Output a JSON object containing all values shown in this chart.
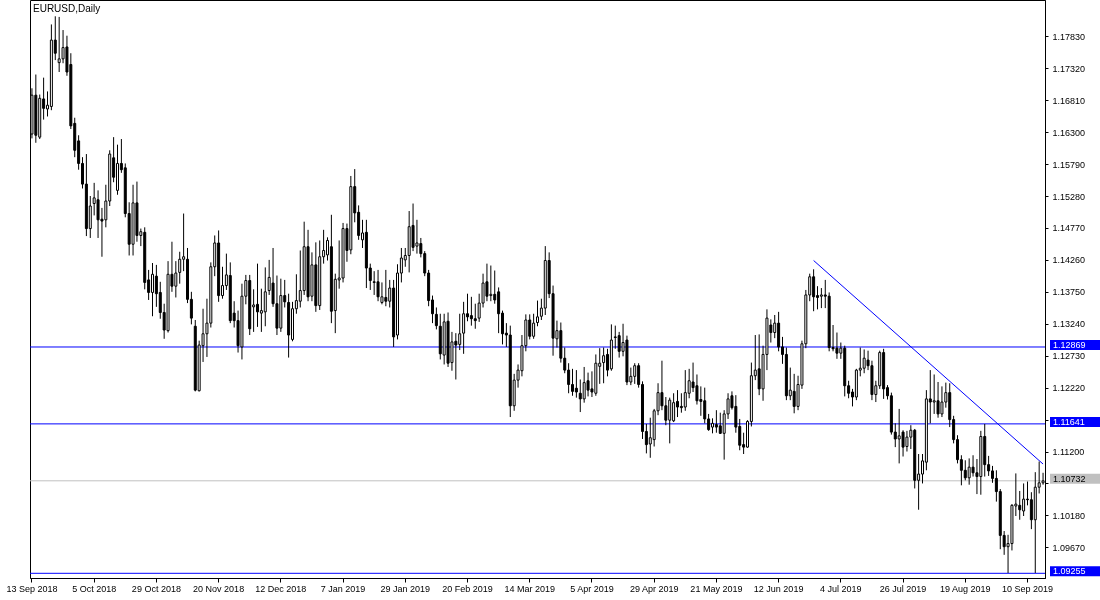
{
  "chart_data": {
    "type": "candlestick",
    "title": "EURUSD,Daily",
    "categories": [
      "13 Sep 2018",
      null,
      null,
      null,
      null,
      null,
      null,
      null,
      null,
      null,
      null,
      null,
      null,
      null,
      null,
      null,
      "5 Oct 2018",
      null,
      null,
      null,
      null,
      null,
      null,
      null,
      null,
      null,
      null,
      null,
      null,
      null,
      null,
      null,
      "29 Oct 2018",
      null,
      null,
      null,
      null,
      null,
      null,
      null,
      null,
      null,
      null,
      null,
      null,
      null,
      null,
      null,
      "20 Nov 2018",
      null,
      null,
      null,
      null,
      null,
      null,
      null,
      null,
      null,
      null,
      null,
      null,
      null,
      null,
      null,
      "12 Dec 2018",
      null,
      null,
      null,
      null,
      null,
      null,
      null,
      null,
      null,
      null,
      null,
      null,
      null,
      null,
      null,
      "7 Jan 2019",
      null,
      null,
      null,
      null,
      null,
      null,
      null,
      null,
      null,
      null,
      null,
      null,
      null,
      null,
      null,
      "29 Jan 2019",
      null,
      null,
      null,
      null,
      null,
      null,
      null,
      null,
      null,
      null,
      null,
      null,
      null,
      null,
      null,
      "20 Feb 2019",
      null,
      null,
      null,
      null,
      null,
      null,
      null,
      null,
      null,
      null,
      null,
      null,
      null,
      null,
      null,
      "14 Mar 2019",
      null,
      null,
      null,
      null,
      null,
      null,
      null,
      null,
      null,
      null,
      null,
      null,
      null,
      null,
      null,
      "5 Apr 2019",
      null,
      null,
      null,
      null,
      null,
      null,
      null,
      null,
      null,
      null,
      null,
      null,
      null,
      null,
      null,
      "29 Apr 2019",
      null,
      null,
      null,
      null,
      null,
      null,
      null,
      null,
      null,
      null,
      null,
      null,
      null,
      null,
      null,
      "21 May 2019",
      null,
      null,
      null,
      null,
      null,
      null,
      null,
      null,
      null,
      null,
      null,
      null,
      null,
      null,
      null,
      "12 Jun 2019",
      null,
      null,
      null,
      null,
      null,
      null,
      null,
      null,
      null,
      null,
      null,
      null,
      null,
      null,
      null,
      "4 Jul 2019",
      null,
      null,
      null,
      null,
      null,
      null,
      null,
      null,
      null,
      null,
      null,
      null,
      null,
      null,
      null,
      "26 Jul 2019",
      null,
      null,
      null,
      null,
      null,
      null,
      null,
      null,
      null,
      null,
      null,
      null,
      null,
      null,
      null,
      "19 Aug 2019",
      null,
      null,
      null,
      null,
      null,
      null,
      null,
      null,
      null,
      null,
      null,
      null,
      null,
      null,
      null,
      "10 Sep 2019",
      null,
      null,
      null,
      null
    ],
    "ohlc": [
      [
        1.1627,
        1.17,
        1.162,
        1.1689
      ],
      [
        1.1689,
        1.1722,
        1.1613,
        1.1625
      ],
      [
        1.1622,
        1.169,
        1.1619,
        1.1684
      ],
      [
        1.1683,
        1.1717,
        1.165,
        1.1668
      ],
      [
        1.1667,
        1.1695,
        1.1655,
        1.1673
      ],
      [
        1.1671,
        1.1802,
        1.1665,
        1.1777
      ],
      [
        1.1777,
        1.1815,
        1.1745,
        1.1756
      ],
      [
        1.1741,
        1.1814,
        1.1726,
        1.1747
      ],
      [
        1.1747,
        1.1793,
        1.174,
        1.1765
      ],
      [
        1.1766,
        1.1784,
        1.172,
        1.1726
      ],
      [
        1.1738,
        1.1756,
        1.1635,
        1.164
      ],
      [
        1.1644,
        1.1653,
        1.159,
        1.1601
      ],
      [
        1.1616,
        1.1625,
        1.157,
        1.158
      ],
      [
        1.158,
        1.159,
        1.154,
        1.1547
      ],
      [
        1.1547,
        1.1595,
        1.1464,
        1.1476
      ],
      [
        1.1476,
        1.1528,
        1.1461,
        1.1512
      ],
      [
        1.1516,
        1.1549,
        1.1497,
        1.1525
      ],
      [
        1.1522,
        1.1537,
        1.1461,
        1.149
      ],
      [
        1.1491,
        1.1509,
        1.1431,
        1.1488
      ],
      [
        1.149,
        1.1546,
        1.1478,
        1.152
      ],
      [
        1.152,
        1.1601,
        1.1512,
        1.1595
      ],
      [
        1.1589,
        1.1622,
        1.155,
        1.1558
      ],
      [
        1.1537,
        1.161,
        1.153,
        1.158
      ],
      [
        1.158,
        1.1619,
        1.1565,
        1.157
      ],
      [
        1.1573,
        1.158,
        1.1494,
        1.15
      ],
      [
        1.15,
        1.1518,
        1.1433,
        1.1451
      ],
      [
        1.1451,
        1.1546,
        1.1433,
        1.1517
      ],
      [
        1.1517,
        1.1551,
        1.1455,
        1.1465
      ],
      [
        1.1465,
        1.1476,
        1.1448,
        1.1471
      ],
      [
        1.147,
        1.1478,
        1.1379,
        1.139
      ],
      [
        1.1394,
        1.141,
        1.1362,
        1.1374
      ],
      [
        1.1374,
        1.1421,
        1.1336,
        1.1403
      ],
      [
        1.14,
        1.1418,
        1.1351,
        1.1372
      ],
      [
        1.1374,
        1.1391,
        1.1332,
        1.1342
      ],
      [
        1.1342,
        1.1356,
        1.13,
        1.1314
      ],
      [
        1.1313,
        1.1424,
        1.131,
        1.1403
      ],
      [
        1.1403,
        1.1455,
        1.1375,
        1.1384
      ],
      [
        1.1384,
        1.1424,
        1.1366,
        1.1405
      ],
      [
        1.1406,
        1.1439,
        1.1388,
        1.1427
      ],
      [
        1.1427,
        1.15,
        1.1408,
        1.1431
      ],
      [
        1.1427,
        1.1445,
        1.1357,
        1.1363
      ],
      [
        1.1363,
        1.1375,
        1.1323,
        1.1333
      ],
      [
        1.132,
        1.133,
        1.1216,
        1.1218
      ],
      [
        1.1217,
        1.1297,
        1.1216,
        1.129
      ],
      [
        1.1289,
        1.1348,
        1.1263,
        1.1308
      ],
      [
        1.1308,
        1.1364,
        1.1271,
        1.1325
      ],
      [
        1.1325,
        1.1422,
        1.1318,
        1.1415
      ],
      [
        1.1415,
        1.1465,
        1.14,
        1.1453
      ],
      [
        1.1453,
        1.1473,
        1.1359,
        1.1369
      ],
      [
        1.1369,
        1.1415,
        1.1364,
        1.1385
      ],
      [
        1.1385,
        1.1436,
        1.1378,
        1.1402
      ],
      [
        1.1401,
        1.1422,
        1.1325,
        1.1329
      ],
      [
        1.1341,
        1.136,
        1.1318,
        1.1329
      ],
      [
        1.1329,
        1.1345,
        1.1278,
        1.1289
      ],
      [
        1.1287,
        1.1388,
        1.1267,
        1.1368
      ],
      [
        1.1368,
        1.1402,
        1.1355,
        1.1393
      ],
      [
        1.1393,
        1.1402,
        1.1306,
        1.1316
      ],
      [
        1.1351,
        1.1379,
        1.1311,
        1.1354
      ],
      [
        1.1355,
        1.142,
        1.1319,
        1.1343
      ],
      [
        1.1341,
        1.138,
        1.1311,
        1.1345
      ],
      [
        1.1343,
        1.1414,
        1.132,
        1.1375
      ],
      [
        1.1377,
        1.1426,
        1.137,
        1.1398
      ],
      [
        1.1389,
        1.1445,
        1.1351,
        1.1356
      ],
      [
        1.1356,
        1.1401,
        1.1306,
        1.1317
      ],
      [
        1.1317,
        1.1396,
        1.1311,
        1.1369
      ],
      [
        1.1369,
        1.1394,
        1.135,
        1.1359
      ],
      [
        1.1358,
        1.1372,
        1.127,
        1.1306
      ],
      [
        1.1299,
        1.1359,
        1.1296,
        1.1348
      ],
      [
        1.1348,
        1.1403,
        1.134,
        1.1361
      ],
      [
        1.136,
        1.1441,
        1.135,
        1.1377
      ],
      [
        1.1377,
        1.1487,
        1.137,
        1.1447
      ],
      [
        1.1447,
        1.1474,
        1.136,
        1.1367
      ],
      [
        1.1368,
        1.1438,
        1.136,
        1.1418
      ],
      [
        1.1418,
        1.1454,
        1.1343,
        1.1353
      ],
      [
        1.1353,
        1.1457,
        1.1346,
        1.1431
      ],
      [
        1.1431,
        1.1474,
        1.142,
        1.1441
      ],
      [
        1.1434,
        1.1462,
        1.1425,
        1.1457
      ],
      [
        1.1447,
        1.1498,
        1.1325,
        1.1344
      ],
      [
        1.1345,
        1.1404,
        1.1309,
        1.1395
      ],
      [
        1.1394,
        1.1457,
        1.138,
        1.1397
      ],
      [
        1.1397,
        1.1485,
        1.139,
        1.1476
      ],
      [
        1.1476,
        1.1484,
        1.1423,
        1.1441
      ],
      [
        1.1442,
        1.156,
        1.1435,
        1.1543
      ],
      [
        1.1543,
        1.1571,
        1.1486,
        1.1501
      ],
      [
        1.1502,
        1.1513,
        1.1458,
        1.1465
      ],
      [
        1.1458,
        1.149,
        1.1445,
        1.1469
      ],
      [
        1.147,
        1.149,
        1.1381,
        1.1413
      ],
      [
        1.1413,
        1.142,
        1.1378,
        1.1393
      ],
      [
        1.1391,
        1.1408,
        1.137,
        1.139
      ],
      [
        1.1391,
        1.141,
        1.136,
        1.1367
      ],
      [
        1.1358,
        1.139,
        1.1355,
        1.1367
      ],
      [
        1.1366,
        1.141,
        1.1352,
        1.136
      ],
      [
        1.136,
        1.1394,
        1.135,
        1.1381
      ],
      [
        1.1381,
        1.1394,
        1.1287,
        1.1303
      ],
      [
        1.1306,
        1.1419,
        1.1299,
        1.1405
      ],
      [
        1.1405,
        1.1445,
        1.139,
        1.1429
      ],
      [
        1.1426,
        1.1445,
        1.1415,
        1.1433
      ],
      [
        1.1433,
        1.1504,
        1.1406,
        1.1479
      ],
      [
        1.1481,
        1.1516,
        1.144,
        1.1446
      ],
      [
        1.1448,
        1.149,
        1.1436,
        1.1453
      ],
      [
        1.1452,
        1.1461,
        1.143,
        1.1436
      ],
      [
        1.1436,
        1.144,
        1.14,
        1.1405
      ],
      [
        1.1405,
        1.141,
        1.1352,
        1.1361
      ],
      [
        1.1362,
        1.1369,
        1.1325,
        1.134
      ],
      [
        1.1339,
        1.135,
        1.1315,
        1.1321
      ],
      [
        1.132,
        1.134,
        1.1267,
        1.1276
      ],
      [
        1.1274,
        1.134,
        1.1259,
        1.1327
      ],
      [
        1.1328,
        1.1342,
        1.1255,
        1.1261
      ],
      [
        1.1262,
        1.1311,
        1.1249,
        1.1295
      ],
      [
        1.1296,
        1.1309,
        1.1235,
        1.129
      ],
      [
        1.1291,
        1.134,
        1.1282,
        1.1308
      ],
      [
        1.1309,
        1.1359,
        1.1276,
        1.134
      ],
      [
        1.134,
        1.1372,
        1.1328,
        1.1335
      ],
      [
        1.1337,
        1.1367,
        1.1321,
        1.1332
      ],
      [
        1.1332,
        1.1356,
        1.1316,
        1.1329
      ],
      [
        1.1333,
        1.1372,
        1.1327,
        1.1357
      ],
      [
        1.1357,
        1.1404,
        1.135,
        1.1389
      ],
      [
        1.1391,
        1.142,
        1.136,
        1.1368
      ],
      [
        1.1369,
        1.1417,
        1.136,
        1.1371
      ],
      [
        1.1371,
        1.1409,
        1.1356,
        1.1362
      ],
      [
        1.1375,
        1.1382,
        1.1309,
        1.134
      ],
      [
        1.1341,
        1.1345,
        1.1291,
        1.1308
      ],
      [
        1.1309,
        1.1325,
        1.1287,
        1.1306
      ],
      [
        1.1306,
        1.1321,
        1.1175,
        1.1193
      ],
      [
        1.1193,
        1.1244,
        1.1185,
        1.1234
      ],
      [
        1.1234,
        1.1259,
        1.1222,
        1.125
      ],
      [
        1.1249,
        1.1306,
        1.124,
        1.1289
      ],
      [
        1.1289,
        1.1339,
        1.128,
        1.133
      ],
      [
        1.133,
        1.1339,
        1.1299,
        1.1304
      ],
      [
        1.1304,
        1.134,
        1.13,
        1.1325
      ],
      [
        1.1326,
        1.1361,
        1.132,
        1.1335
      ],
      [
        1.1336,
        1.1364,
        1.133,
        1.1349
      ],
      [
        1.1349,
        1.1448,
        1.1338,
        1.1425
      ],
      [
        1.1425,
        1.1438,
        1.1365,
        1.1372
      ],
      [
        1.1372,
        1.1385,
        1.1273,
        1.1301
      ],
      [
        1.13,
        1.1329,
        1.1286,
        1.1313
      ],
      [
        1.1313,
        1.1326,
        1.1262,
        1.1269
      ],
      [
        1.1269,
        1.1286,
        1.1245,
        1.125
      ],
      [
        1.125,
        1.1261,
        1.1213,
        1.1227
      ],
      [
        1.1227,
        1.1252,
        1.1209,
        1.1216
      ],
      [
        1.1221,
        1.125,
        1.1206,
        1.1215
      ],
      [
        1.1213,
        1.1235,
        1.1183,
        1.1204
      ],
      [
        1.1204,
        1.1255,
        1.1198,
        1.123
      ],
      [
        1.1233,
        1.1246,
        1.1208,
        1.1218
      ],
      [
        1.122,
        1.1248,
        1.1207,
        1.1215
      ],
      [
        1.1213,
        1.1275,
        1.1209,
        1.1261
      ],
      [
        1.1256,
        1.1285,
        1.1228,
        1.1261
      ],
      [
        1.1262,
        1.1286,
        1.1229,
        1.1273
      ],
      [
        1.1275,
        1.1284,
        1.124,
        1.125
      ],
      [
        1.1252,
        1.1323,
        1.1249,
        1.1298
      ],
      [
        1.1303,
        1.1321,
        1.1284,
        1.1302
      ],
      [
        1.1305,
        1.1311,
        1.127,
        1.128
      ],
      [
        1.128,
        1.1324,
        1.1272,
        1.1294
      ],
      [
        1.1298,
        1.1305,
        1.1226,
        1.1231
      ],
      [
        1.1231,
        1.1254,
        1.1226,
        1.124
      ],
      [
        1.124,
        1.1261,
        1.1228,
        1.1257
      ],
      [
        1.1257,
        1.1261,
        1.1222,
        1.1227
      ],
      [
        1.1227,
        1.1232,
        1.114,
        1.1152
      ],
      [
        1.1152,
        1.1164,
        1.1117,
        1.1131
      ],
      [
        1.1132,
        1.1174,
        1.111,
        1.1142
      ],
      [
        1.1139,
        1.1188,
        1.1128,
        1.1185
      ],
      [
        1.1185,
        1.1229,
        1.1178,
        1.1214
      ],
      [
        1.1214,
        1.1265,
        1.1186,
        1.1193
      ],
      [
        1.1193,
        1.1207,
        1.1162,
        1.117
      ],
      [
        1.117,
        1.1206,
        1.1133,
        1.1202
      ],
      [
        1.1169,
        1.1213,
        1.1167,
        1.1198
      ],
      [
        1.12,
        1.1218,
        1.1175,
        1.1191
      ],
      [
        1.1192,
        1.1213,
        1.1182,
        1.119
      ],
      [
        1.1191,
        1.125,
        1.1185,
        1.1214
      ],
      [
        1.1213,
        1.1252,
        1.1205,
        1.1233
      ],
      [
        1.1231,
        1.1262,
        1.1215,
        1.1222
      ],
      [
        1.1225,
        1.1243,
        1.1195,
        1.1201
      ],
      [
        1.1203,
        1.1224,
        1.1177,
        1.12
      ],
      [
        1.1201,
        1.1222,
        1.1165,
        1.1172
      ],
      [
        1.1172,
        1.118,
        1.1153,
        1.1155
      ],
      [
        1.1159,
        1.1173,
        1.1149,
        1.1165
      ],
      [
        1.1163,
        1.1186,
        1.115,
        1.1159
      ],
      [
        1.1161,
        1.1182,
        1.1148,
        1.1149
      ],
      [
        1.1149,
        1.1186,
        1.1107,
        1.118
      ],
      [
        1.118,
        1.1213,
        1.1172,
        1.1204
      ],
      [
        1.1209,
        1.1216,
        1.1187,
        1.119
      ],
      [
        1.1192,
        1.121,
        1.115,
        1.1159
      ],
      [
        1.116,
        1.1172,
        1.1122,
        1.113
      ],
      [
        1.1131,
        1.115,
        1.1116,
        1.1127
      ],
      [
        1.1127,
        1.117,
        1.1126,
        1.1168
      ],
      [
        1.1168,
        1.1262,
        1.116,
        1.1241
      ],
      [
        1.1241,
        1.1306,
        1.1234,
        1.125
      ],
      [
        1.1252,
        1.1307,
        1.121,
        1.122
      ],
      [
        1.122,
        1.1289,
        1.1201,
        1.1275
      ],
      [
        1.1275,
        1.1347,
        1.125,
        1.1333
      ],
      [
        1.1322,
        1.1331,
        1.1294,
        1.131
      ],
      [
        1.131,
        1.1338,
        1.1301,
        1.1325
      ],
      [
        1.1325,
        1.1343,
        1.128,
        1.1287
      ],
      [
        1.1287,
        1.1303,
        1.126,
        1.1275
      ],
      [
        1.1275,
        1.1286,
        1.1202,
        1.1209
      ],
      [
        1.1209,
        1.1254,
        1.1202,
        1.1218
      ],
      [
        1.1216,
        1.1244,
        1.1181,
        1.1192
      ],
      [
        1.1192,
        1.1241,
        1.1186,
        1.1227
      ],
      [
        1.1226,
        1.1297,
        1.122,
        1.1292
      ],
      [
        1.1292,
        1.1378,
        1.1285,
        1.137
      ],
      [
        1.137,
        1.1404,
        1.136,
        1.1399
      ],
      [
        1.1399,
        1.1411,
        1.1344,
        1.1367
      ],
      [
        1.1369,
        1.1384,
        1.1347,
        1.1366
      ],
      [
        1.1368,
        1.1381,
        1.1349,
        1.137
      ],
      [
        1.137,
        1.1394,
        1.1349,
        1.1368
      ],
      [
        1.1368,
        1.1374,
        1.128,
        1.1286
      ],
      [
        1.1286,
        1.1322,
        1.128,
        1.1284
      ],
      [
        1.1285,
        1.131,
        1.1268,
        1.1277
      ],
      [
        1.1277,
        1.1294,
        1.1268,
        1.1285
      ],
      [
        1.1285,
        1.1289,
        1.1208,
        1.1225
      ],
      [
        1.1225,
        1.1233,
        1.1205,
        1.1213
      ],
      [
        1.1215,
        1.122,
        1.1192,
        1.1207
      ],
      [
        1.1207,
        1.1252,
        1.1202,
        1.125
      ],
      [
        1.125,
        1.1286,
        1.124,
        1.1253
      ],
      [
        1.1253,
        1.1283,
        1.1245,
        1.1269
      ],
      [
        1.1266,
        1.1281,
        1.125,
        1.1257
      ],
      [
        1.1257,
        1.1265,
        1.1202,
        1.1211
      ],
      [
        1.1211,
        1.1233,
        1.1199,
        1.1225
      ],
      [
        1.1225,
        1.1281,
        1.122,
        1.1278
      ],
      [
        1.1278,
        1.1284,
        1.1204,
        1.122
      ],
      [
        1.1222,
        1.1226,
        1.1203,
        1.1209
      ],
      [
        1.1209,
        1.1214,
        1.1147,
        1.1151
      ],
      [
        1.1151,
        1.1165,
        1.1127,
        1.114
      ],
      [
        1.114,
        1.1188,
        1.1101,
        1.1145
      ],
      [
        1.1151,
        1.1154,
        1.1112,
        1.1127
      ],
      [
        1.1128,
        1.1153,
        1.112,
        1.1143
      ],
      [
        1.1143,
        1.1162,
        1.1124,
        1.1154
      ],
      [
        1.1154,
        1.1156,
        1.1061,
        1.1074
      ],
      [
        1.1074,
        1.1116,
        1.1027,
        1.1084
      ],
      [
        1.1084,
        1.1116,
        1.1069,
        1.1105
      ],
      [
        1.1103,
        1.1218,
        1.109,
        1.1204
      ],
      [
        1.1204,
        1.125,
        1.1165,
        1.1199
      ],
      [
        1.1199,
        1.1243,
        1.118,
        1.1201
      ],
      [
        1.1201,
        1.1231,
        1.1174,
        1.118
      ],
      [
        1.118,
        1.1224,
        1.1175,
        1.1199
      ],
      [
        1.1199,
        1.123,
        1.119,
        1.1214
      ],
      [
        1.1214,
        1.1229,
        1.1159,
        1.1171
      ],
      [
        1.1171,
        1.1177,
        1.1133,
        1.1139
      ],
      [
        1.1139,
        1.1146,
        1.1101,
        1.1107
      ],
      [
        1.1107,
        1.1114,
        1.1066,
        1.109
      ],
      [
        1.109,
        1.1106,
        1.1074,
        1.1078
      ],
      [
        1.1078,
        1.1109,
        1.1067,
        1.1095
      ],
      [
        1.1095,
        1.1114,
        1.108,
        1.1086
      ],
      [
        1.1086,
        1.1108,
        1.1052,
        1.108
      ],
      [
        1.108,
        1.1153,
        1.1051,
        1.1144
      ],
      [
        1.1144,
        1.1164,
        1.108,
        1.1099
      ],
      [
        1.1099,
        1.1113,
        1.1081,
        1.1089
      ],
      [
        1.1089,
        1.1097,
        1.107,
        1.1077
      ],
      [
        1.1077,
        1.109,
        1.104,
        1.1056
      ],
      [
        1.1056,
        1.106,
        1.0964,
        1.0986
      ],
      [
        1.0986,
        1.0993,
        1.0955,
        1.0968
      ],
      [
        1.0968,
        1.0987,
        1.0926,
        1.0973
      ],
      [
        1.0973,
        1.1036,
        1.0962,
        1.1034
      ],
      [
        1.1033,
        1.1085,
        1.1017,
        1.1036
      ],
      [
        1.1034,
        1.1057,
        1.1011,
        1.1027
      ],
      [
        1.1025,
        1.1069,
        1.1017,
        1.1044
      ],
      [
        1.1044,
        1.1072,
        1.1034,
        1.1043
      ],
      [
        1.1043,
        1.1055,
        1.0996,
        1.1011
      ],
      [
        1.1011,
        1.1087,
        1.0926,
        1.1063
      ],
      [
        1.1063,
        1.1104,
        1.1053,
        1.107
      ],
      [
        1.107,
        1.1086,
        1.1067,
        1.1073
      ]
    ],
    "color": "#000000",
    "ylim": [
      1.0918,
      1.1841
    ],
    "yticks": [
      {
        "value": 1.0967,
        "label": "1.09670"
      },
      {
        "value": 1.1018,
        "label": "1.10180"
      },
      {
        "value": 1.1069,
        "label": null
      },
      {
        "value": 1.112,
        "label": "1.11200"
      },
      {
        "value": 1.1171,
        "label": null
      },
      {
        "value": 1.1222,
        "label": "1.12220"
      },
      {
        "value": 1.1273,
        "label": "1.12730"
      },
      {
        "value": 1.1324,
        "label": "1.13240"
      },
      {
        "value": 1.1375,
        "label": "1.13750"
      },
      {
        "value": 1.1426,
        "label": "1.14260"
      },
      {
        "value": 1.1477,
        "label": "1.14770"
      },
      {
        "value": 1.1528,
        "label": "1.15280"
      },
      {
        "value": 1.1579,
        "label": "1.15790"
      },
      {
        "value": 1.163,
        "label": "1.16300"
      },
      {
        "value": 1.1681,
        "label": "1.16810"
      },
      {
        "value": 1.1732,
        "label": "1.17320"
      },
      {
        "value": 1.1783,
        "label": "1.17830"
      }
    ],
    "ref_lines": [
      {
        "axis": "y",
        "value": 1.12869,
        "label": "1.12869",
        "color": "#0000ff"
      },
      {
        "axis": "y",
        "value": 1.11641,
        "label": "1.11641",
        "color": "#0000ff"
      },
      {
        "axis": "y",
        "value": 1.10732,
        "label": "1.10732",
        "color": "#c0c0c0"
      },
      {
        "axis": "y",
        "value": 1.09255,
        "label": "1.09255",
        "color": "#0000ff"
      }
    ],
    "series": [
      {
        "type": "line",
        "color": "#0000ff",
        "values": [
          null,
          null,
          null,
          null,
          null,
          null,
          null,
          null,
          null,
          null,
          null,
          null,
          null,
          null,
          null,
          null,
          null,
          null,
          null,
          null,
          null,
          null,
          null,
          null,
          null,
          null,
          null,
          null,
          null,
          null,
          null,
          null,
          null,
          null,
          null,
          null,
          null,
          null,
          null,
          null,
          null,
          null,
          null,
          null,
          null,
          null,
          null,
          null,
          null,
          null,
          null,
          null,
          null,
          null,
          null,
          null,
          null,
          null,
          null,
          null,
          null,
          null,
          null,
          null,
          null,
          null,
          null,
          null,
          null,
          null,
          null,
          null,
          null,
          null,
          null,
          null,
          null,
          null,
          null,
          null,
          null,
          null,
          null,
          null,
          null,
          null,
          null,
          null,
          null,
          null,
          null,
          null,
          null,
          null,
          null,
          null,
          null,
          null,
          null,
          null,
          null,
          null,
          null,
          null,
          null,
          null,
          null,
          null,
          null,
          null,
          null,
          null,
          null,
          null,
          null,
          null,
          null,
          null,
          null,
          null,
          null,
          null,
          null,
          null,
          null,
          null,
          null,
          null,
          null,
          null,
          null,
          null,
          null,
          null,
          null,
          null,
          null,
          null,
          null,
          null,
          null,
          null,
          null,
          null,
          null,
          null,
          null,
          null,
          null,
          null,
          null,
          null,
          null,
          null,
          null,
          null,
          null,
          null,
          null,
          null,
          null,
          null,
          null,
          null,
          null,
          null,
          null,
          null,
          null,
          null,
          null,
          null,
          null,
          null,
          null,
          null,
          null,
          null,
          null,
          null,
          null,
          null,
          null,
          null,
          null,
          null,
          null,
          null,
          null,
          null,
          null,
          null,
          null,
          null,
          null,
          null,
          null,
          null,
          null,
          null,
          null,
          1.1425,
          null,
          null,
          null,
          null,
          null,
          null,
          null,
          null,
          null,
          null,
          null,
          null,
          null,
          null,
          null,
          null,
          null,
          null,
          null,
          null,
          null,
          null,
          null,
          null,
          null,
          null,
          null,
          null,
          null,
          null,
          null,
          null,
          null,
          null,
          null,
          null,
          null,
          null,
          null,
          null,
          null,
          null,
          null,
          null,
          null,
          null,
          null,
          null,
          null,
          null,
          null,
          null,
          null,
          null,
          null,
          null,
          null,
          null,
          1.11
        ]
      }
    ]
  }
}
